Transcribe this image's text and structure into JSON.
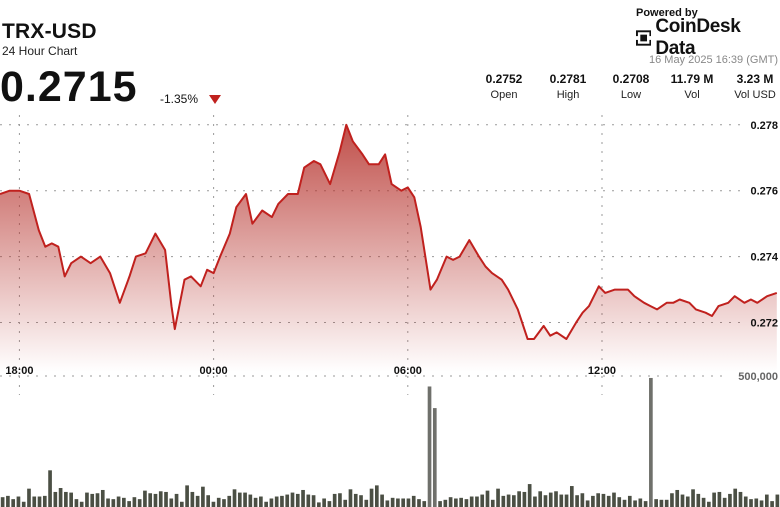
{
  "header": {
    "pair": "TRX-USD",
    "subtitle": "24 Hour Chart",
    "price": "0.2715",
    "change": "-1.35%"
  },
  "brand": {
    "powered_by": "Powered by",
    "name": "CoinDesk Data",
    "timestamp": "16 May 2025 16:39 (GMT)"
  },
  "stats": [
    {
      "value": "0.2752",
      "label": "Open"
    },
    {
      "value": "0.2781",
      "label": "High"
    },
    {
      "value": "0.2708",
      "label": "Low"
    },
    {
      "value": "11.79 M",
      "label": "Vol"
    },
    {
      "value": "3.23 M",
      "label": "Vol USD"
    }
  ],
  "colors": {
    "line": "#c0211e",
    "down": "#c0211e",
    "volume": "#4b4f44",
    "volume_highlight": "#6f706b"
  },
  "chart_data": {
    "type": "area",
    "title": "TRX-USD",
    "price_ticks": [
      0.272,
      0.274,
      0.276,
      0.278
    ],
    "price_tick_labels": [
      "0.272",
      "0.274",
      "0.276",
      "0.278"
    ],
    "ylim": [
      0.2705,
      0.2786
    ],
    "volume_tick_label": "500,000",
    "volume_tick_value": 500000,
    "xlim_hours": [
      0,
      24.1
    ],
    "x_tick_labels": [
      "18:00",
      "00:00",
      "06:00",
      "12:00"
    ],
    "x_tick_hours": [
      0.6,
      6.6,
      12.6,
      18.6
    ],
    "price_series": {
      "name": "TRX-USD",
      "hours": [
        0,
        0.3,
        0.6,
        0.9,
        1.2,
        1.4,
        1.6,
        1.8,
        2.0,
        2.2,
        2.5,
        2.8,
        3.1,
        3.4,
        3.7,
        4.0,
        4.2,
        4.5,
        4.8,
        5.1,
        5.3,
        5.4,
        5.7,
        5.9,
        6.2,
        6.4,
        6.6,
        6.8,
        7.1,
        7.3,
        7.6,
        7.8,
        8.1,
        8.4,
        8.6,
        8.9,
        9.2,
        9.4,
        9.7,
        9.9,
        10.2,
        10.5,
        10.7,
        10.9,
        11.2,
        11.4,
        11.7,
        11.9,
        12.1,
        12.4,
        12.6,
        12.8,
        13.0,
        13.3,
        13.5,
        13.8,
        14.0,
        14.2,
        14.5,
        14.8,
        15.0,
        15.2,
        15.5,
        15.7,
        16.0,
        16.3,
        16.5,
        16.8,
        17.0,
        17.2,
        17.5,
        17.8,
        18.0,
        18.2,
        18.5,
        18.7,
        19.0,
        19.2,
        19.4,
        19.6,
        19.9,
        20.1,
        20.3,
        20.6,
        20.8,
        21.0,
        21.3,
        21.5,
        21.8,
        22.0,
        22.2,
        22.5,
        22.7,
        23.0,
        23.2,
        23.4,
        23.7,
        24.0
      ],
      "values": [
        0.2759,
        0.276,
        0.276,
        0.2759,
        0.2748,
        0.2743,
        0.2744,
        0.2743,
        0.2734,
        0.2738,
        0.274,
        0.2738,
        0.274,
        0.2735,
        0.2726,
        0.2734,
        0.274,
        0.2741,
        0.2747,
        0.2742,
        0.2725,
        0.2718,
        0.2733,
        0.2734,
        0.2731,
        0.2736,
        0.2735,
        0.274,
        0.2747,
        0.2755,
        0.2759,
        0.275,
        0.2754,
        0.2752,
        0.2756,
        0.2759,
        0.2759,
        0.2767,
        0.2769,
        0.2768,
        0.2762,
        0.2772,
        0.278,
        0.2775,
        0.2771,
        0.2768,
        0.2768,
        0.2771,
        0.2762,
        0.276,
        0.2761,
        0.2758,
        0.2749,
        0.273,
        0.2733,
        0.274,
        0.2739,
        0.274,
        0.2745,
        0.274,
        0.2737,
        0.2735,
        0.2733,
        0.273,
        0.2724,
        0.2715,
        0.2715,
        0.2719,
        0.2716,
        0.2717,
        0.2715,
        0.272,
        0.2723,
        0.2725,
        0.2731,
        0.2729,
        0.273,
        0.273,
        0.273,
        0.2728,
        0.2726,
        0.2725,
        0.2724,
        0.2726,
        0.2726,
        0.2727,
        0.2726,
        0.2724,
        0.2723,
        0.2722,
        0.2725,
        0.2726,
        0.2728,
        0.2726,
        0.2727,
        0.2726,
        0.2728,
        0.2729
      ]
    },
    "volume_series": {
      "values": [
        150000,
        170000,
        120000,
        160000,
        80000,
        280000,
        160000,
        160000,
        170000,
        560000,
        230000,
        290000,
        230000,
        220000,
        120000,
        80000,
        220000,
        200000,
        210000,
        260000,
        130000,
        120000,
        160000,
        140000,
        90000,
        150000,
        120000,
        250000,
        210000,
        200000,
        240000,
        230000,
        130000,
        200000,
        80000,
        330000,
        230000,
        170000,
        310000,
        180000,
        80000,
        140000,
        120000,
        170000,
        270000,
        220000,
        220000,
        190000,
        140000,
        160000,
        80000,
        130000,
        160000,
        170000,
        190000,
        220000,
        200000,
        260000,
        190000,
        180000,
        70000,
        130000,
        90000,
        200000,
        210000,
        110000,
        270000,
        200000,
        180000,
        110000,
        280000,
        330000,
        190000,
        100000,
        140000,
        130000,
        130000,
        130000,
        170000,
        120000,
        90000,
        1840000,
        1510000,
        90000,
        110000,
        150000,
        130000,
        140000,
        120000,
        160000,
        160000,
        190000,
        250000,
        110000,
        280000,
        170000,
        190000,
        180000,
        240000,
        230000,
        350000,
        160000,
        240000,
        180000,
        220000,
        240000,
        190000,
        190000,
        320000,
        180000,
        210000,
        100000,
        170000,
        210000,
        200000,
        170000,
        220000,
        150000,
        110000,
        170000,
        100000,
        130000,
        90000,
        1970000,
        120000,
        110000,
        110000,
        210000,
        260000,
        190000,
        160000,
        270000,
        200000,
        140000,
        80000,
        220000,
        230000,
        140000,
        200000,
        280000,
        230000,
        160000,
        120000,
        130000,
        100000,
        190000,
        90000,
        190000
      ]
    }
  }
}
